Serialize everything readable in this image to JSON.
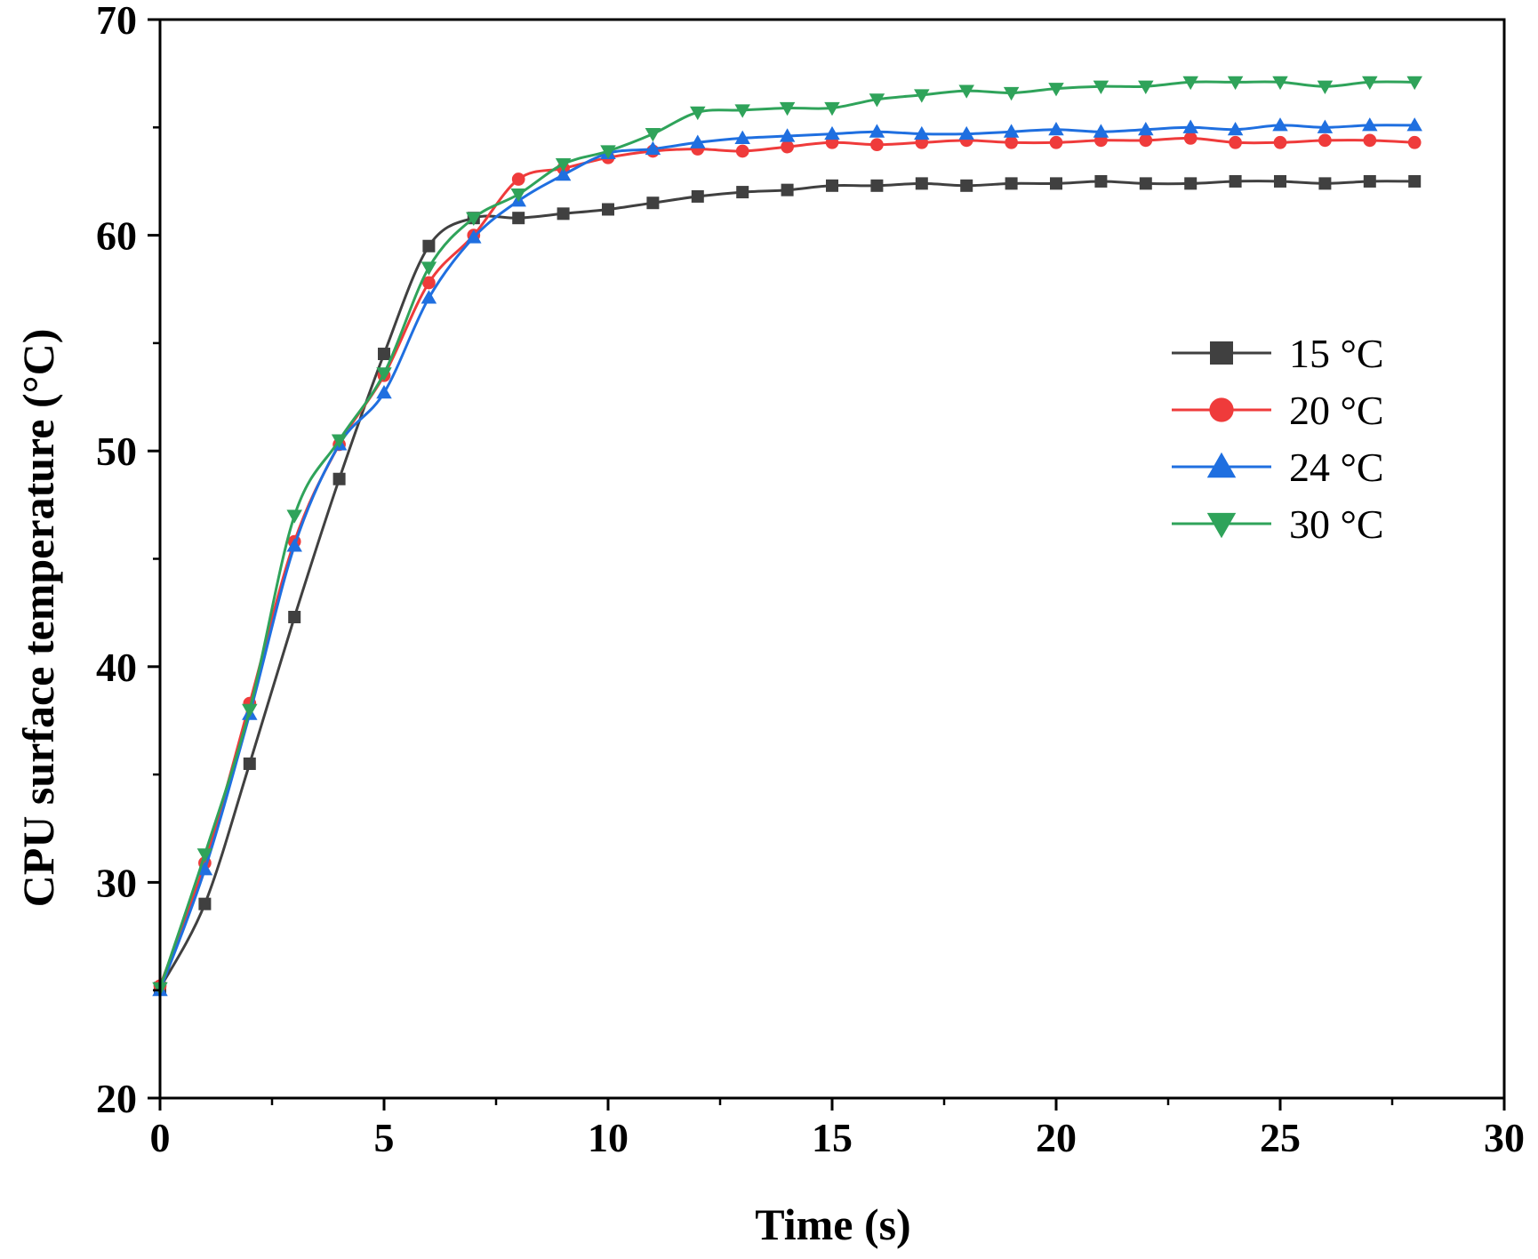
{
  "chart_data": {
    "type": "line",
    "title": "",
    "xlabel": "Time (s)",
    "ylabel": "CPU surface temperature (°C)",
    "xlim": [
      0,
      30
    ],
    "ylim": [
      20,
      70
    ],
    "xticks": [
      0,
      5,
      10,
      15,
      20,
      25,
      30
    ],
    "xtick_labels": [
      "0",
      "5",
      "10",
      "15",
      "20",
      "25",
      "30"
    ],
    "yticks": [
      20,
      30,
      40,
      50,
      60,
      70
    ],
    "ytick_labels": [
      "20",
      "30",
      "40",
      "50",
      "60",
      "70"
    ],
    "grid": false,
    "legend_position": "center-right",
    "x": [
      0,
      1,
      2,
      3,
      4,
      5,
      6,
      7,
      8,
      9,
      10,
      11,
      12,
      13,
      14,
      15,
      16,
      17,
      18,
      19,
      20,
      21,
      22,
      23,
      24,
      25,
      26,
      27,
      28
    ],
    "series": [
      {
        "name": "15 °C",
        "color": "#404040",
        "marker": "square",
        "values": [
          25.1,
          29.0,
          35.5,
          42.3,
          48.7,
          54.5,
          59.5,
          60.8,
          60.8,
          61.0,
          61.2,
          61.5,
          61.8,
          62.0,
          62.1,
          62.3,
          62.3,
          62.4,
          62.3,
          62.4,
          62.4,
          62.5,
          62.4,
          62.4,
          62.5,
          62.5,
          62.4,
          62.5,
          62.5
        ]
      },
      {
        "name": "20 °C",
        "color": "#ef3b3b",
        "marker": "circle",
        "values": [
          25.2,
          30.9,
          38.3,
          45.8,
          50.3,
          53.5,
          57.8,
          60.0,
          62.6,
          63.1,
          63.6,
          63.9,
          64.0,
          63.9,
          64.1,
          64.3,
          64.2,
          64.3,
          64.4,
          64.3,
          64.3,
          64.4,
          64.4,
          64.5,
          64.3,
          64.3,
          64.4,
          64.4,
          64.3
        ]
      },
      {
        "name": "24 °C",
        "color": "#1f6fe0",
        "marker": "triangle-up",
        "values": [
          25.0,
          30.6,
          37.8,
          45.6,
          50.3,
          52.7,
          57.1,
          59.9,
          61.6,
          62.8,
          63.8,
          64.0,
          64.3,
          64.5,
          64.6,
          64.7,
          64.8,
          64.7,
          64.7,
          64.8,
          64.9,
          64.8,
          64.9,
          65.0,
          64.9,
          65.1,
          65.0,
          65.1,
          65.1
        ]
      },
      {
        "name": "30 °C",
        "color": "#2fa35a",
        "marker": "triangle-down",
        "values": [
          25.1,
          31.3,
          38.0,
          47.0,
          50.5,
          53.6,
          58.5,
          60.8,
          61.9,
          63.3,
          63.9,
          64.7,
          65.7,
          65.8,
          65.9,
          65.9,
          66.3,
          66.5,
          66.7,
          66.6,
          66.8,
          66.9,
          66.9,
          67.1,
          67.1,
          67.1,
          66.9,
          67.1,
          67.1
        ]
      }
    ]
  }
}
